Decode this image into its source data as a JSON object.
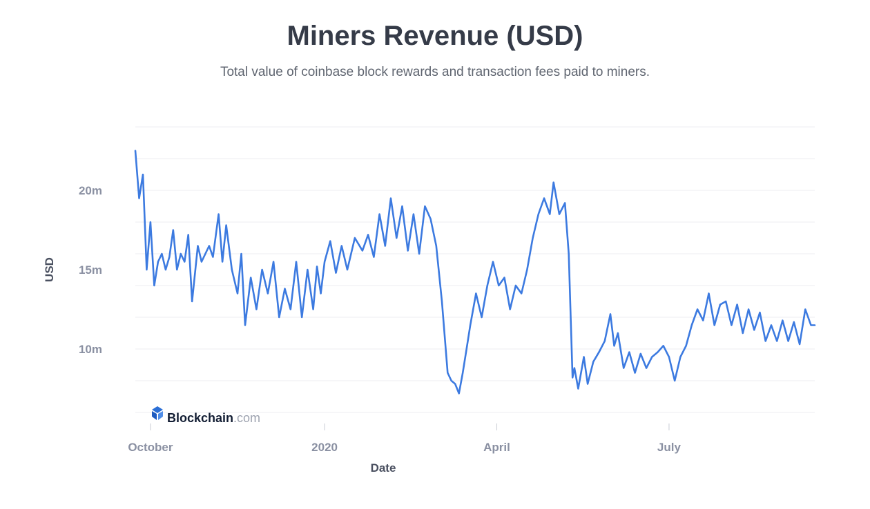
{
  "chart_data": {
    "type": "line",
    "title": "Miners Revenue (USD)",
    "subtitle": "Total value of coinbase block rewards and transaction fees paid to miners.",
    "xlabel": "Date",
    "ylabel": "USD",
    "x_ticks": [
      {
        "date": "2019-10-01",
        "label": "October"
      },
      {
        "date": "2020-01-01",
        "label": "2020"
      },
      {
        "date": "2020-04-01",
        "label": "April"
      },
      {
        "date": "2020-07-01",
        "label": "July"
      }
    ],
    "y_ticks": [
      {
        "value": 10000000,
        "label": "10m"
      },
      {
        "value": 15000000,
        "label": "15m"
      },
      {
        "value": 20000000,
        "label": "20m"
      }
    ],
    "xlim": [
      "2019-09-23",
      "2020-09-16"
    ],
    "ylim": [
      6000000,
      24000000
    ],
    "grid": true,
    "color": "#3c7ae0",
    "watermark": {
      "brand": "Blockchain",
      "suffix": ".com"
    },
    "series": [
      {
        "x": [
          "2019-09-23",
          "2019-09-25",
          "2019-09-27",
          "2019-09-29",
          "2019-10-01",
          "2019-10-03",
          "2019-10-05",
          "2019-10-07",
          "2019-10-09",
          "2019-10-11",
          "2019-10-13",
          "2019-10-15",
          "2019-10-17",
          "2019-10-19",
          "2019-10-21",
          "2019-10-23",
          "2019-10-26",
          "2019-10-28",
          "2019-10-30",
          "2019-11-01",
          "2019-11-03",
          "2019-11-06",
          "2019-11-08",
          "2019-11-10",
          "2019-11-13",
          "2019-11-16",
          "2019-11-18",
          "2019-11-20",
          "2019-11-23",
          "2019-11-26",
          "2019-11-29",
          "2019-12-02",
          "2019-12-05",
          "2019-12-08",
          "2019-12-11",
          "2019-12-14",
          "2019-12-17",
          "2019-12-20",
          "2019-12-23",
          "2019-12-26",
          "2019-12-28",
          "2019-12-30",
          "2020-01-01",
          "2020-01-04",
          "2020-01-07",
          "2020-01-10",
          "2020-01-13",
          "2020-01-17",
          "2020-01-21",
          "2020-01-24",
          "2020-01-27",
          "2020-01-30",
          "2020-02-02",
          "2020-02-05",
          "2020-02-08",
          "2020-02-11",
          "2020-02-14",
          "2020-02-17",
          "2020-02-20",
          "2020-02-23",
          "2020-02-26",
          "2020-02-29",
          "2020-03-03",
          "2020-03-06",
          "2020-03-08",
          "2020-03-10",
          "2020-03-12",
          "2020-03-14",
          "2020-03-16",
          "2020-03-18",
          "2020-03-21",
          "2020-03-24",
          "2020-03-27",
          "2020-03-30",
          "2020-04-02",
          "2020-04-05",
          "2020-04-08",
          "2020-04-11",
          "2020-04-14",
          "2020-04-17",
          "2020-04-20",
          "2020-04-23",
          "2020-04-26",
          "2020-04-29",
          "2020-05-01",
          "2020-05-04",
          "2020-05-07",
          "2020-05-09",
          "2020-05-11",
          "2020-05-12",
          "2020-05-14",
          "2020-05-17",
          "2020-05-19",
          "2020-05-22",
          "2020-05-25",
          "2020-05-28",
          "2020-05-31",
          "2020-06-02",
          "2020-06-04",
          "2020-06-07",
          "2020-06-10",
          "2020-06-13",
          "2020-06-16",
          "2020-06-19",
          "2020-06-22",
          "2020-06-25",
          "2020-06-28",
          "2020-07-01",
          "2020-07-04",
          "2020-07-07",
          "2020-07-10",
          "2020-07-13",
          "2020-07-16",
          "2020-07-19",
          "2020-07-22",
          "2020-07-25",
          "2020-07-28",
          "2020-07-31",
          "2020-08-03",
          "2020-08-06",
          "2020-08-09",
          "2020-08-12",
          "2020-08-15",
          "2020-08-18",
          "2020-08-21",
          "2020-08-24",
          "2020-08-27",
          "2020-08-30",
          "2020-09-02",
          "2020-09-05",
          "2020-09-08",
          "2020-09-11",
          "2020-09-14",
          "2020-09-16"
        ],
        "y": [
          22500000,
          19500000,
          21000000,
          15000000,
          18000000,
          14000000,
          15500000,
          16000000,
          15000000,
          15800000,
          17500000,
          15000000,
          16000000,
          15500000,
          17200000,
          13000000,
          16500000,
          15500000,
          16000000,
          16500000,
          15800000,
          18500000,
          15500000,
          17800000,
          15000000,
          13500000,
          16000000,
          11500000,
          14500000,
          12500000,
          15000000,
          13500000,
          15500000,
          12000000,
          13800000,
          12500000,
          15500000,
          12000000,
          15000000,
          12500000,
          15200000,
          13500000,
          15500000,
          16800000,
          14800000,
          16500000,
          15000000,
          17000000,
          16200000,
          17200000,
          15800000,
          18500000,
          16500000,
          19500000,
          17000000,
          19000000,
          16200000,
          18500000,
          16000000,
          19000000,
          18200000,
          16500000,
          13000000,
          8500000,
          8000000,
          7800000,
          7200000,
          8500000,
          10000000,
          11500000,
          13500000,
          12000000,
          14000000,
          15500000,
          14000000,
          14500000,
          12500000,
          14000000,
          13500000,
          15000000,
          17000000,
          18500000,
          19500000,
          18500000,
          20500000,
          18500000,
          19200000,
          16000000,
          8200000,
          8800000,
          7500000,
          9500000,
          7800000,
          9200000,
          9800000,
          10500000,
          12200000,
          10200000,
          11000000,
          8800000,
          9800000,
          8500000,
          9700000,
          8800000,
          9500000,
          9800000,
          10200000,
          9500000,
          8000000,
          9500000,
          10200000,
          11500000,
          12500000,
          11800000,
          13500000,
          11500000,
          12800000,
          13000000,
          11500000,
          12800000,
          11000000,
          12500000,
          11200000,
          12300000,
          10500000,
          11500000,
          10500000,
          11800000,
          10500000,
          11700000,
          10300000,
          12500000,
          11500000,
          11500000
        ]
      }
    ]
  }
}
